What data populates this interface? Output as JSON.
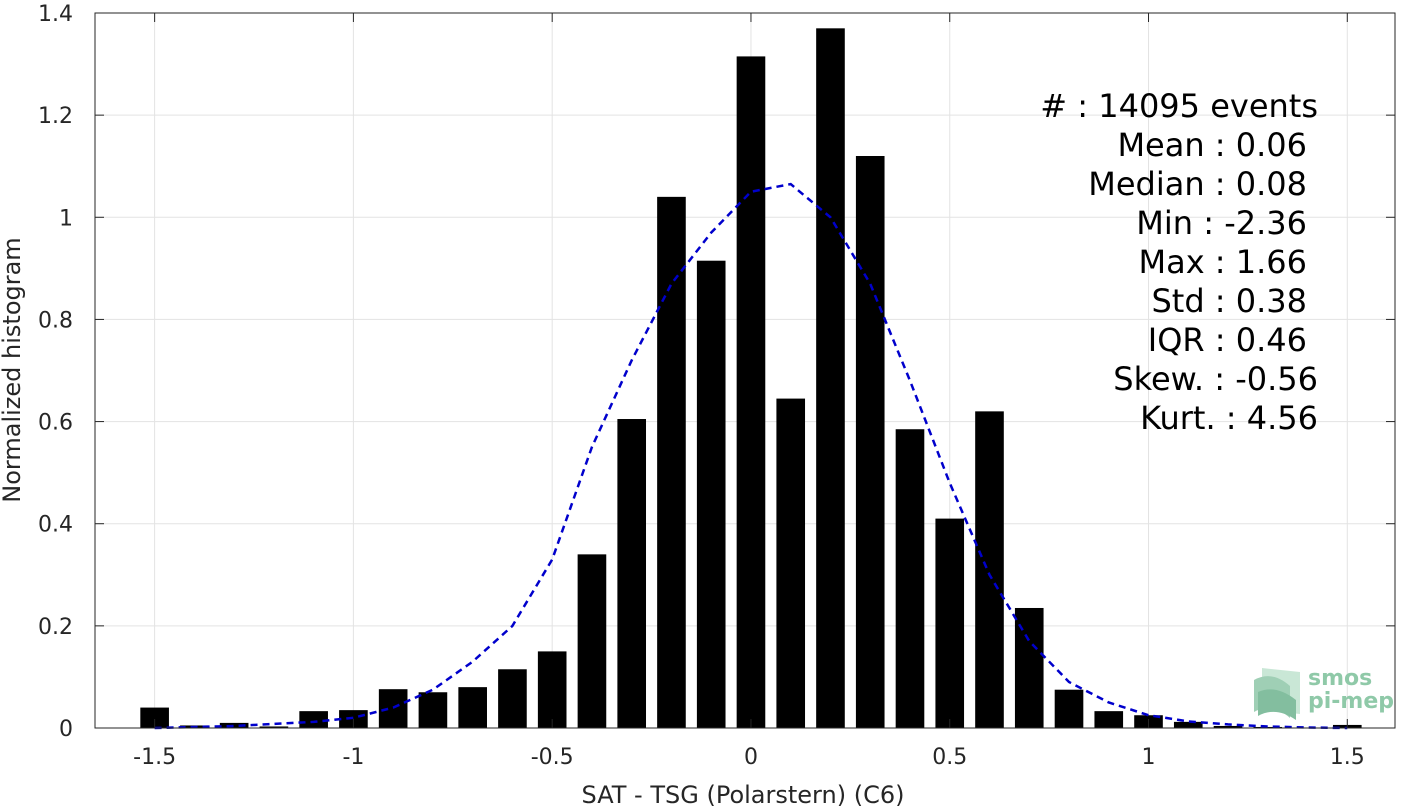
{
  "chart_data": {
    "type": "bar",
    "xlabel": "SAT - TSG (Polarstern) (C6)",
    "ylabel": "Normalized histogram",
    "xlim": [
      -1.65,
      1.62
    ],
    "ylim": [
      0,
      1.4
    ],
    "xticks": [
      -1.5,
      -1,
      -0.5,
      0,
      0.5,
      1,
      1.5
    ],
    "xtick_labels": [
      "-1.5",
      "-1",
      "-0.5",
      "0",
      "0.5",
      "1",
      "1.5"
    ],
    "yticks": [
      0,
      0.2,
      0.4,
      0.6,
      0.8,
      1,
      1.2,
      1.4
    ],
    "ytick_labels": [
      "0",
      "0.2",
      "0.4",
      "0.6",
      "0.8",
      "1",
      "1.2",
      "1.4"
    ],
    "grid": true,
    "bin_width": 0.1,
    "bars": {
      "x": [
        -1.5,
        -1.4,
        -1.3,
        -1.2,
        -1.1,
        -1.0,
        -0.9,
        -0.8,
        -0.7,
        -0.6,
        -0.5,
        -0.4,
        -0.3,
        -0.2,
        -0.1,
        0.0,
        0.1,
        0.2,
        0.3,
        0.4,
        0.5,
        0.6,
        0.7,
        0.8,
        0.9,
        1.0,
        1.1,
        1.2,
        1.3,
        1.4,
        1.5
      ],
      "values": [
        0.04,
        0.005,
        0.01,
        0.003,
        0.033,
        0.035,
        0.076,
        0.07,
        0.08,
        0.115,
        0.15,
        0.34,
        0.605,
        1.04,
        0.915,
        1.315,
        0.645,
        1.37,
        1.12,
        0.585,
        0.41,
        0.62,
        0.235,
        0.075,
        0.033,
        0.025,
        0.012,
        0.004,
        0.002,
        0.001,
        0.006
      ],
      "color": "#000000"
    },
    "fit_curve": {
      "style": "dashed",
      "color": "#0000cc",
      "x": [
        -1.5,
        -1.4,
        -1.3,
        -1.2,
        -1.1,
        -1.0,
        -0.9,
        -0.8,
        -0.7,
        -0.6,
        -0.5,
        -0.4,
        -0.3,
        -0.2,
        -0.1,
        0.0,
        0.1,
        0.2,
        0.3,
        0.4,
        0.5,
        0.6,
        0.7,
        0.8,
        0.9,
        1.0,
        1.1,
        1.2,
        1.3,
        1.4,
        1.5
      ],
      "y": [
        0.0,
        0.002,
        0.004,
        0.008,
        0.012,
        0.02,
        0.04,
        0.075,
        0.13,
        0.2,
        0.33,
        0.55,
        0.72,
        0.87,
        0.97,
        1.05,
        1.065,
        1.0,
        0.87,
        0.68,
        0.48,
        0.3,
        0.17,
        0.09,
        0.05,
        0.025,
        0.013,
        0.007,
        0.003,
        0.001,
        0.0
      ]
    },
    "stats_lines": [
      "#  : 14095 events",
      "Mean : 0.06",
      "Median : 0.08",
      "Min : -2.36",
      "Max : 1.66",
      "Std : 0.38",
      "IQR : 0.46",
      "Skew. : -0.56",
      "Kurt. : 4.56"
    ]
  },
  "logo": {
    "line1": "smos",
    "line2": "pi-mep",
    "color": "#8fc9a8"
  }
}
